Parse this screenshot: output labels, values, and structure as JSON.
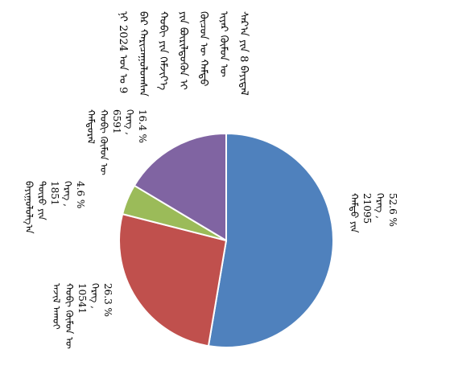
{
  "chart_data": {
    "type": "pie",
    "title": "ᠰᠠᠷ᠎ᠠ ᠶᠢᠨ 8 ᠪᠠᠶᠢᠳᠠᠯ ᠢᠶᠠᠷ ᠬᠦᠮᠦᠨ ᠦ ᠬᠦᠴᠦᠨ ᠦ ᠬᠠᠮᠲᠤ ᠶᠢᠨ ᠪᠦᠷᠢᠯᠳᠦᠬᠦᠨ ᠢ ᠬᠤᠪᠢ ᠶᠢᠨ ᠬᠡᠮᠵᠢᠶ᠎ᠡ ᠪᠡᠷ ᠬᠠᠷᠢᠴᠠᠭᠤᠯᠤᠭᠰᠠᠨ ᠨᠢ 2024 ᠣᠨ ᠤ 9",
    "categories": [
      "ᠬᠠᠮᠲᠤ ᠶᠢᠨ",
      "ᠬᠤᠪᠢ ᠬᠦᠮᠦᠨ ᠦ ᠠᠵᠢᠯ ᠠᠬᠤᠢ",
      "ᠲᠦᠷᠦ ᠶᠢᠨ ᠪᠠᠶᠢᠭᠤᠯᠤᠯᠭ᠎ᠠ",
      "ᠬᠤᠪᠢ ᠬᠦᠮᠦᠨ ᠦ ᠬᠠᠮᠲᠤᠷᠠᠯ"
    ],
    "values": [
      52.6,
      26.3,
      4.6,
      16.4
    ],
    "value_labels": [
      "52.6 %",
      "26.3 %",
      "4.6 %",
      "16.4 %"
    ],
    "count_label": "ᠬᠡᠷᠡᠭ ,",
    "counts": [
      21095,
      10541,
      1851,
      6591
    ],
    "colors": [
      "#4f81bd",
      "#c0504d",
      "#9bbb59",
      "#8064a2"
    ]
  }
}
